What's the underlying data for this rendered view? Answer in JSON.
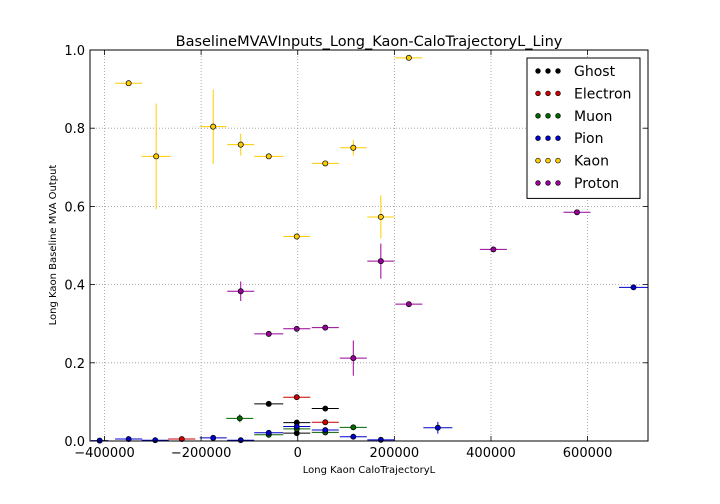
{
  "chart_data": {
    "type": "scatter",
    "title": "BaselineMVAVInputs_Long_Kaon-CaloTrajectoryL_Liny",
    "xlabel": "Long Kaon CaloTrajectoryL",
    "ylabel": "Long Kaon Baseline MVA Output",
    "xlim": [
      -430000,
      725000
    ],
    "ylim": [
      0,
      1.0
    ],
    "x_ticks": [
      -400000,
      -200000,
      0,
      200000,
      400000,
      600000
    ],
    "x_tick_labels": [
      "−400000",
      "−200000",
      "0",
      "200000",
      "400000",
      "600000"
    ],
    "y_ticks": [
      0.0,
      0.2,
      0.4,
      0.6,
      0.8,
      1.0
    ],
    "y_tick_labels": [
      "0.0",
      "0.2",
      "0.4",
      "0.6",
      "0.8",
      "1.0"
    ],
    "grid": true,
    "legend_position": "top-right",
    "series": [
      {
        "name": "Ghost",
        "color": "#000000",
        "points": [
          {
            "x": -60000,
            "y": 0.095,
            "xerr": 30000,
            "yerr": 0.004
          },
          {
            "x": -2000,
            "y": 0.047,
            "xerr": 28000,
            "yerr": 0.004
          },
          {
            "x": 57000,
            "y": 0.083,
            "xerr": 28000,
            "yerr": 0.004
          },
          {
            "x": -2000,
            "y": 0.02,
            "xerr": 28000,
            "yerr": 0.003
          }
        ]
      },
      {
        "name": "Electron",
        "color": "#cc0000",
        "points": [
          {
            "x": -2000,
            "y": 0.112,
            "xerr": 28000,
            "yerr": 0.004
          },
          {
            "x": 57000,
            "y": 0.048,
            "xerr": 28000,
            "yerr": 0.003
          },
          {
            "x": -240000,
            "y": 0.005,
            "xerr": 28000,
            "yerr": 0.002
          }
        ]
      },
      {
        "name": "Muon",
        "color": "#006600",
        "points": [
          {
            "x": -120000,
            "y": 0.058,
            "xerr": 28000,
            "yerr": 0.01
          },
          {
            "x": -2000,
            "y": 0.031,
            "xerr": 28000,
            "yerr": 0.004
          },
          {
            "x": 57000,
            "y": 0.022,
            "xerr": 28000,
            "yerr": 0.003
          },
          {
            "x": 115000,
            "y": 0.035,
            "xerr": 28000,
            "yerr": 0.005
          },
          {
            "x": -60000,
            "y": 0.016,
            "xerr": 30000,
            "yerr": 0.003
          }
        ]
      },
      {
        "name": "Pion",
        "color": "#0000cc",
        "points": [
          {
            "x": -410000,
            "y": 0.001,
            "xerr": 18000,
            "yerr": 0.001
          },
          {
            "x": -350000,
            "y": 0.005,
            "xerr": 28000,
            "yerr": 0.001
          },
          {
            "x": -295000,
            "y": 0.002,
            "xerr": 28000,
            "yerr": 0.001
          },
          {
            "x": -175000,
            "y": 0.008,
            "xerr": 28000,
            "yerr": 0.002
          },
          {
            "x": -118000,
            "y": 0.002,
            "xerr": 28000,
            "yerr": 0.001
          },
          {
            "x": -60000,
            "y": 0.021,
            "xerr": 30000,
            "yerr": 0.003
          },
          {
            "x": -2000,
            "y": 0.037,
            "xerr": 28000,
            "yerr": 0.003
          },
          {
            "x": 57000,
            "y": 0.028,
            "xerr": 28000,
            "yerr": 0.003
          },
          {
            "x": 115000,
            "y": 0.011,
            "xerr": 28000,
            "yerr": 0.002
          },
          {
            "x": 172000,
            "y": 0.003,
            "xerr": 28000,
            "yerr": 0.001
          },
          {
            "x": 290000,
            "y": 0.034,
            "xerr": 30000,
            "yerr": 0.015
          },
          {
            "x": 695000,
            "y": 0.393,
            "xerr": 30000,
            "yerr": 0.004
          }
        ]
      },
      {
        "name": "Kaon",
        "color": "#ffcc00",
        "points": [
          {
            "x": -350000,
            "y": 0.915,
            "xerr": 28000,
            "yerr": 0.006
          },
          {
            "x": -293000,
            "y": 0.728,
            "xerr": 30000,
            "yerr": 0.135
          },
          {
            "x": -175000,
            "y": 0.804,
            "xerr": 28000,
            "yerr": 0.095
          },
          {
            "x": -118000,
            "y": 0.758,
            "xerr": 28000,
            "yerr": 0.028
          },
          {
            "x": -60000,
            "y": 0.728,
            "xerr": 30000,
            "yerr": 0.006
          },
          {
            "x": -2000,
            "y": 0.523,
            "xerr": 28000,
            "yerr": 0.006
          },
          {
            "x": 57000,
            "y": 0.71,
            "xerr": 28000,
            "yerr": 0.006
          },
          {
            "x": 115000,
            "y": 0.75,
            "xerr": 28000,
            "yerr": 0.02
          },
          {
            "x": 172000,
            "y": 0.573,
            "xerr": 28000,
            "yerr": 0.055
          },
          {
            "x": 230000,
            "y": 0.98,
            "xerr": 28000,
            "yerr": 0.004
          }
        ]
      },
      {
        "name": "Proton",
        "color": "#990099",
        "points": [
          {
            "x": -118000,
            "y": 0.383,
            "xerr": 28000,
            "yerr": 0.025
          },
          {
            "x": -60000,
            "y": 0.274,
            "xerr": 30000,
            "yerr": 0.005
          },
          {
            "x": -2000,
            "y": 0.287,
            "xerr": 28000,
            "yerr": 0.005
          },
          {
            "x": 57000,
            "y": 0.29,
            "xerr": 28000,
            "yerr": 0.005
          },
          {
            "x": 115000,
            "y": 0.212,
            "xerr": 28000,
            "yerr": 0.045
          },
          {
            "x": 172000,
            "y": 0.46,
            "xerr": 28000,
            "yerr": 0.045
          },
          {
            "x": 230000,
            "y": 0.35,
            "xerr": 28000,
            "yerr": 0.005
          },
          {
            "x": 405000,
            "y": 0.49,
            "xerr": 28000,
            "yerr": 0.005
          },
          {
            "x": 578000,
            "y": 0.585,
            "xerr": 28000,
            "yerr": 0.005
          }
        ]
      }
    ]
  }
}
